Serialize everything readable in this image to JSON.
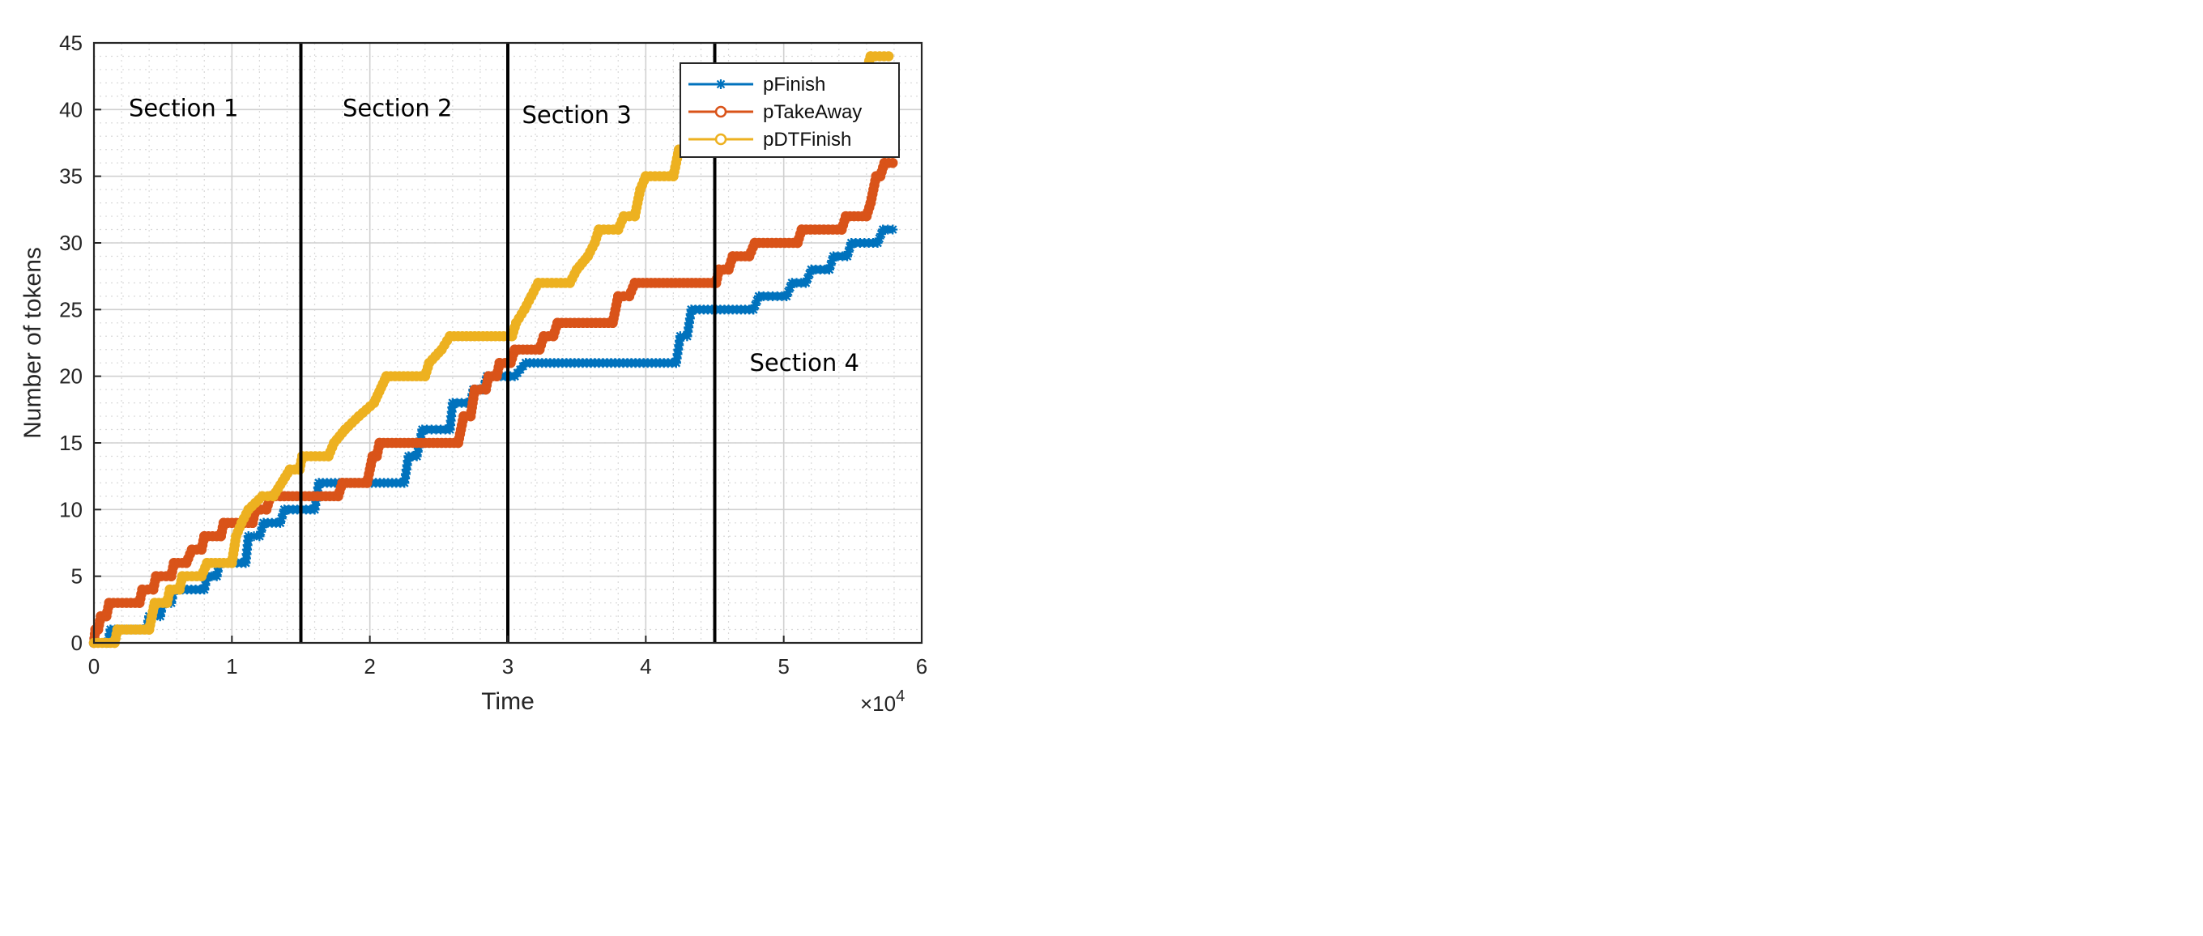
{
  "chart_data": {
    "type": "line",
    "xlabel": "Time",
    "ylabel": "Number of tokens",
    "x_exponent_label": "×10",
    "x_exponent_power": "4",
    "xlim": [
      0,
      60000
    ],
    "ylim": [
      0,
      45
    ],
    "x_ticks": [
      0,
      10000,
      20000,
      30000,
      40000,
      50000,
      60000
    ],
    "x_tick_labels": [
      "0",
      "1",
      "2",
      "3",
      "4",
      "5",
      "6"
    ],
    "y_ticks": [
      0,
      5,
      10,
      15,
      20,
      25,
      30,
      35,
      40,
      45
    ],
    "y_tick_labels": [
      "0",
      "5",
      "10",
      "15",
      "20",
      "25",
      "30",
      "35",
      "40",
      "45"
    ],
    "grid": true,
    "minor_grid": true,
    "legend_position": "top-right",
    "section_lines": [
      15000,
      30000,
      45000
    ],
    "annotations": [
      {
        "text": "Section 1",
        "x": 6500,
        "y": 39.5
      },
      {
        "text": "Section 2",
        "x": 22000,
        "y": 39.5
      },
      {
        "text": "Section 3",
        "x": 35000,
        "y": 39.0
      },
      {
        "text": "Section 4",
        "x": 51500,
        "y": 20.4
      }
    ],
    "series": [
      {
        "name": "pFinish",
        "color": "#0072BD",
        "marker": "star",
        "steps": [
          [
            0,
            0
          ],
          [
            1000,
            0
          ],
          [
            1200,
            1
          ],
          [
            3800,
            1
          ],
          [
            4000,
            2
          ],
          [
            4800,
            2
          ],
          [
            5000,
            3
          ],
          [
            5600,
            3
          ],
          [
            5800,
            4
          ],
          [
            8000,
            4
          ],
          [
            8200,
            5
          ],
          [
            8900,
            5
          ],
          [
            9100,
            6
          ],
          [
            11000,
            6
          ],
          [
            11200,
            8
          ],
          [
            12000,
            8
          ],
          [
            12300,
            9
          ],
          [
            13500,
            9
          ],
          [
            13800,
            10
          ],
          [
            16000,
            10
          ],
          [
            16300,
            12
          ],
          [
            22500,
            12
          ],
          [
            22800,
            14
          ],
          [
            23400,
            14
          ],
          [
            23800,
            16
          ],
          [
            25800,
            16
          ],
          [
            26000,
            18
          ],
          [
            27300,
            18
          ],
          [
            27500,
            19
          ],
          [
            28200,
            19
          ],
          [
            28500,
            20
          ],
          [
            30500,
            20
          ],
          [
            31300,
            21
          ],
          [
            42200,
            21
          ],
          [
            42500,
            23
          ],
          [
            43000,
            23
          ],
          [
            43300,
            25
          ],
          [
            47800,
            25
          ],
          [
            48200,
            26
          ],
          [
            50200,
            26
          ],
          [
            50600,
            27
          ],
          [
            51600,
            27
          ],
          [
            52000,
            28
          ],
          [
            53300,
            28
          ],
          [
            53600,
            29
          ],
          [
            54600,
            29
          ],
          [
            54900,
            30
          ],
          [
            56800,
            30
          ],
          [
            57200,
            31
          ],
          [
            57900,
            31
          ]
        ]
      },
      {
        "name": "pTakeAway",
        "color": "#D95319",
        "marker": "circle",
        "steps": [
          [
            0,
            0
          ],
          [
            100,
            1
          ],
          [
            300,
            1
          ],
          [
            500,
            2
          ],
          [
            900,
            2
          ],
          [
            1100,
            3
          ],
          [
            3300,
            3
          ],
          [
            3500,
            4
          ],
          [
            4300,
            4
          ],
          [
            4500,
            5
          ],
          [
            5600,
            5
          ],
          [
            5800,
            6
          ],
          [
            6700,
            6
          ],
          [
            7100,
            7
          ],
          [
            7800,
            7
          ],
          [
            8000,
            8
          ],
          [
            9200,
            8
          ],
          [
            9400,
            9
          ],
          [
            11500,
            9
          ],
          [
            11700,
            10
          ],
          [
            12500,
            10
          ],
          [
            12800,
            11
          ],
          [
            13500,
            11
          ],
          [
            13800,
            11
          ],
          [
            17700,
            11
          ],
          [
            18000,
            12
          ],
          [
            19800,
            12
          ],
          [
            20200,
            14
          ],
          [
            20500,
            14
          ],
          [
            20700,
            15
          ],
          [
            26400,
            15
          ],
          [
            26800,
            17
          ],
          [
            27300,
            17
          ],
          [
            27600,
            19
          ],
          [
            28400,
            19
          ],
          [
            28600,
            20
          ],
          [
            29200,
            20
          ],
          [
            29400,
            21
          ],
          [
            30200,
            21
          ],
          [
            30500,
            22
          ],
          [
            32300,
            22
          ],
          [
            32600,
            23
          ],
          [
            33300,
            23
          ],
          [
            33600,
            24
          ],
          [
            37600,
            24
          ],
          [
            38000,
            26
          ],
          [
            38800,
            26
          ],
          [
            39200,
            27
          ],
          [
            45100,
            27
          ],
          [
            45300,
            28
          ],
          [
            46000,
            28
          ],
          [
            46300,
            29
          ],
          [
            47500,
            29
          ],
          [
            47900,
            30
          ],
          [
            51000,
            30
          ],
          [
            51300,
            31
          ],
          [
            54200,
            31
          ],
          [
            54500,
            32
          ],
          [
            56000,
            32
          ],
          [
            56300,
            33
          ],
          [
            56700,
            35
          ],
          [
            57000,
            35
          ],
          [
            57300,
            36
          ],
          [
            57900,
            36
          ]
        ]
      },
      {
        "name": "pDTFinish",
        "color": "#EDB120",
        "marker": "circle",
        "steps": [
          [
            0,
            0
          ],
          [
            1500,
            0
          ],
          [
            1700,
            1
          ],
          [
            4000,
            1
          ],
          [
            4200,
            2
          ],
          [
            4400,
            3
          ],
          [
            5300,
            3
          ],
          [
            5500,
            4
          ],
          [
            6200,
            4
          ],
          [
            6400,
            5
          ],
          [
            7800,
            5
          ],
          [
            8200,
            6
          ],
          [
            10000,
            6
          ],
          [
            10300,
            8
          ],
          [
            10700,
            9
          ],
          [
            11200,
            10
          ],
          [
            12200,
            11
          ],
          [
            13000,
            11
          ],
          [
            14200,
            13
          ],
          [
            14900,
            13
          ],
          [
            15100,
            14
          ],
          [
            17000,
            14
          ],
          [
            17400,
            15
          ],
          [
            18200,
            16
          ],
          [
            19200,
            17
          ],
          [
            20300,
            18
          ],
          [
            21200,
            20
          ],
          [
            24000,
            20
          ],
          [
            24300,
            21
          ],
          [
            25200,
            22
          ],
          [
            25800,
            23
          ],
          [
            30300,
            23
          ],
          [
            30600,
            24
          ],
          [
            31200,
            25
          ],
          [
            31700,
            26
          ],
          [
            32200,
            27
          ],
          [
            34500,
            27
          ],
          [
            35000,
            28
          ],
          [
            35800,
            29
          ],
          [
            36300,
            30
          ],
          [
            36600,
            31
          ],
          [
            38000,
            31
          ],
          [
            38400,
            32
          ],
          [
            39200,
            32
          ],
          [
            39600,
            34
          ],
          [
            40000,
            35
          ],
          [
            42000,
            35
          ],
          [
            42400,
            37
          ],
          [
            44600,
            37
          ],
          [
            45000,
            38
          ],
          [
            56000,
            43
          ],
          [
            56300,
            44
          ],
          [
            57600,
            44
          ]
        ]
      }
    ]
  }
}
